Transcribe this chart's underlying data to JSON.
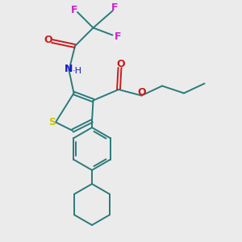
{
  "bg_color": "#ebebeb",
  "bond_color": "#2a7a7a",
  "sulfur_color": "#c8c800",
  "nitrogen_color": "#1a1acc",
  "oxygen_color": "#cc1a1a",
  "fluorine_color": "#cc22cc",
  "figsize": [
    3.0,
    3.0
  ],
  "dpi": 100,
  "xlim": [
    0,
    10
  ],
  "ylim": [
    0,
    10
  ]
}
